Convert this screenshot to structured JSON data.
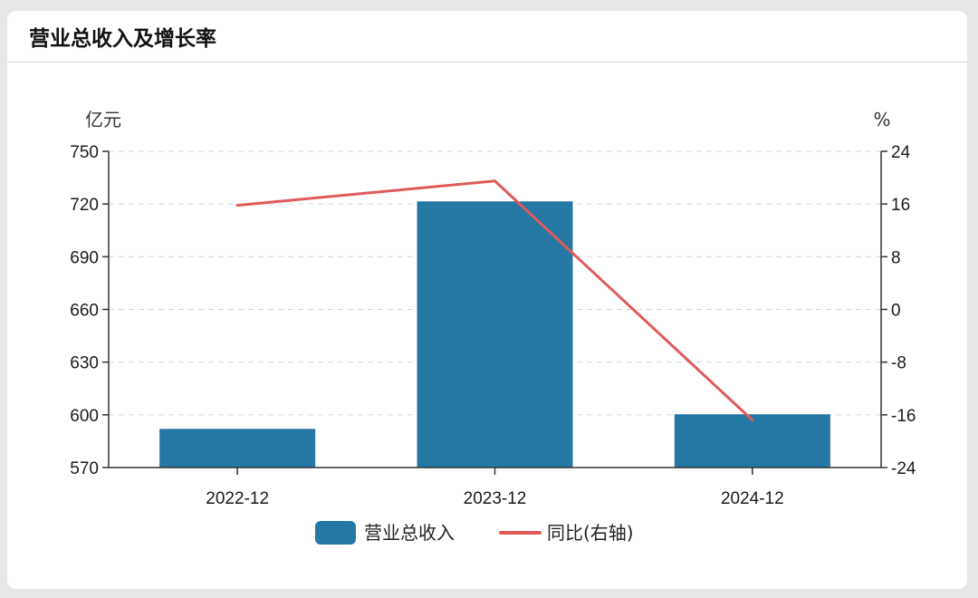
{
  "panel": {
    "title": "营业总收入及增长率"
  },
  "colors": {
    "bar": "#2577a4",
    "line": "#e05a5a",
    "axis": "#333333",
    "grid": "#d6d6d6"
  },
  "chart_data": {
    "type": "bar",
    "title": "营业总收入及增长率",
    "categories": [
      "2022-12",
      "2023-12",
      "2024-12"
    ],
    "series": [
      {
        "name": "营业总收入",
        "type": "bar",
        "axis": "left",
        "values": [
          592,
          721.5,
          600.3
        ]
      },
      {
        "name": "同比(右轴)",
        "type": "line",
        "axis": "right",
        "values": [
          15.8,
          19.5,
          -16.8
        ]
      }
    ],
    "y_left": {
      "unit": "亿元",
      "range": [
        570,
        750
      ],
      "ticks": [
        570,
        600,
        630,
        660,
        690,
        720,
        750
      ]
    },
    "y_right": {
      "unit": "%",
      "range": [
        -24,
        24
      ],
      "ticks": [
        -24,
        -16,
        -8,
        0,
        8,
        16,
        24
      ]
    },
    "grid": true,
    "legend_position": "bottom-center"
  }
}
